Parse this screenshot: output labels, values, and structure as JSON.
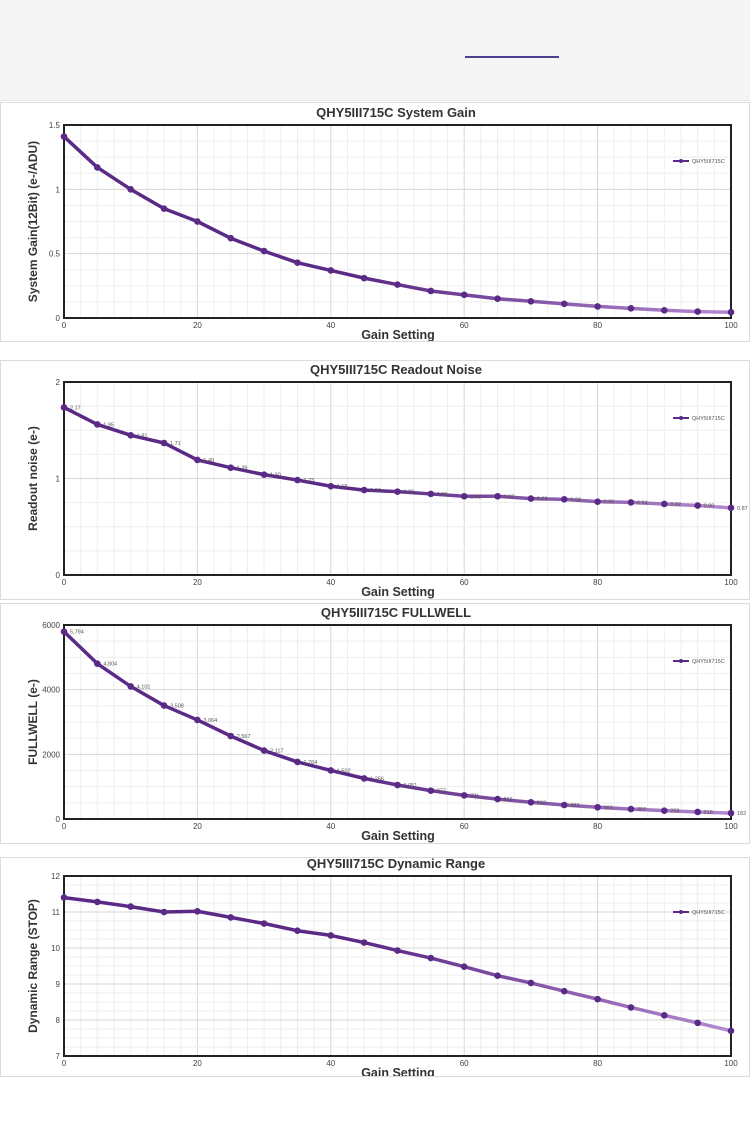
{
  "colors": {
    "series": "#5b2a86",
    "series_light": "#b48ad0",
    "axis": "#222222",
    "grid_major": "#d6d6d6",
    "grid_minor": "#eeeeee",
    "top_line": "#4a3f8f"
  },
  "chart_data": [
    {
      "type": "line",
      "title": "QHY5III715C System Gain",
      "xlabel": "Gain Setting",
      "ylabel": "System Gain(12Bit) (e-/ADU)",
      "legend": "QHY5III715C",
      "legend_position": "top-right",
      "grid": true,
      "xlim": [
        0,
        100
      ],
      "ylim": [
        0,
        1.5
      ],
      "xticks": [
        "0",
        "20",
        "40",
        "60",
        "80",
        "100"
      ],
      "yticks": [
        "0",
        "0.5",
        "1",
        "1.5"
      ],
      "x": [
        0,
        5,
        10,
        15,
        20,
        25,
        30,
        35,
        40,
        45,
        50,
        55,
        60,
        65,
        70,
        75,
        80,
        85,
        90,
        95,
        100
      ],
      "values": [
        1.41,
        1.17,
        1.0,
        0.85,
        0.75,
        0.62,
        0.52,
        0.43,
        0.37,
        0.31,
        0.26,
        0.21,
        0.18,
        0.15,
        0.13,
        0.11,
        0.09,
        0.075,
        0.06,
        0.05,
        0.045
      ],
      "data_labels": []
    },
    {
      "type": "line",
      "title": "QHY5III715C Readout Noise",
      "xlabel": "Gain Setting",
      "ylabel": "Readout noise (e-)",
      "legend": "QHY5III715C",
      "legend_position": "top-right",
      "grid": true,
      "xlim": [
        0,
        100
      ],
      "ylim": [
        0,
        2.5
      ],
      "xticks": [
        "0",
        "20",
        "40",
        "60",
        "80",
        "100"
      ],
      "yticks": [
        "0",
        "1",
        "2"
      ],
      "x": [
        0,
        5,
        10,
        15,
        20,
        25,
        30,
        35,
        40,
        45,
        50,
        55,
        60,
        65,
        70,
        75,
        80,
        85,
        90,
        95,
        100
      ],
      "values": [
        2.17,
        1.95,
        1.81,
        1.71,
        1.49,
        1.39,
        1.3,
        1.23,
        1.15,
        1.1,
        1.08,
        1.05,
        1.02,
        1.02,
        0.99,
        0.98,
        0.95,
        0.94,
        0.92,
        0.9,
        0.87
      ],
      "data_labels": [
        "2.17",
        "1.95",
        "1.81",
        "1.71",
        "1.49",
        "1.39",
        "1.30",
        "1.23",
        "1.15",
        "1.10",
        "1.08",
        "1.05",
        "1.02",
        "1.02",
        "0.99",
        "0.98",
        "0.95",
        "0.94",
        "0.92",
        "0.90",
        "0.87"
      ]
    },
    {
      "type": "line",
      "title": "QHY5III715C FULLWELL",
      "xlabel": "Gain Setting",
      "ylabel": "FULLWELL (e-)",
      "legend": "QHY5III715C",
      "legend_position": "top-right",
      "grid": true,
      "xlim": [
        0,
        100
      ],
      "ylim": [
        0,
        6000
      ],
      "xticks": [
        "0",
        "20",
        "40",
        "60",
        "80",
        "100"
      ],
      "yticks": [
        "0",
        "2000",
        "4000",
        "6000"
      ],
      "x": [
        0,
        5,
        10,
        15,
        20,
        25,
        30,
        35,
        40,
        45,
        50,
        55,
        60,
        65,
        70,
        75,
        80,
        85,
        90,
        95,
        100
      ],
      "values": [
        5794,
        4804,
        4101,
        3508,
        3064,
        2567,
        2117,
        1764,
        1502,
        1256,
        1051,
        877,
        731,
        616,
        518,
        433,
        363,
        307,
        258,
        218,
        182
      ],
      "data_labels": [
        "5,794",
        "4,804",
        "4,101",
        "3,508",
        "3,064",
        "2,567",
        "2,117",
        "1,764",
        "1,502",
        "1,256",
        "1,051",
        "877",
        "731",
        "616",
        "518",
        "433",
        "363",
        "307",
        "258",
        "218",
        "182"
      ]
    },
    {
      "type": "line",
      "title": "QHY5III715C Dynamic Range",
      "xlabel": "Gain Setting",
      "ylabel": "Dynamic Range (STOP)",
      "legend": "QHY5III715C",
      "legend_position": "top-right",
      "grid": true,
      "xlim": [
        0,
        100
      ],
      "ylim": [
        7,
        12
      ],
      "xticks": [
        "0",
        "20",
        "40",
        "60",
        "80",
        "100"
      ],
      "yticks": [
        "7",
        "8",
        "9",
        "10",
        "11",
        "12"
      ],
      "x": [
        0,
        5,
        10,
        15,
        20,
        25,
        30,
        35,
        40,
        45,
        50,
        55,
        60,
        65,
        70,
        75,
        80,
        85,
        90,
        95,
        100
      ],
      "values": [
        11.4,
        11.28,
        11.15,
        11.0,
        11.02,
        10.85,
        10.68,
        10.48,
        10.35,
        10.15,
        9.93,
        9.72,
        9.48,
        9.23,
        9.03,
        8.8,
        8.58,
        8.35,
        8.13,
        7.92,
        7.7
      ],
      "data_labels": []
    }
  ]
}
